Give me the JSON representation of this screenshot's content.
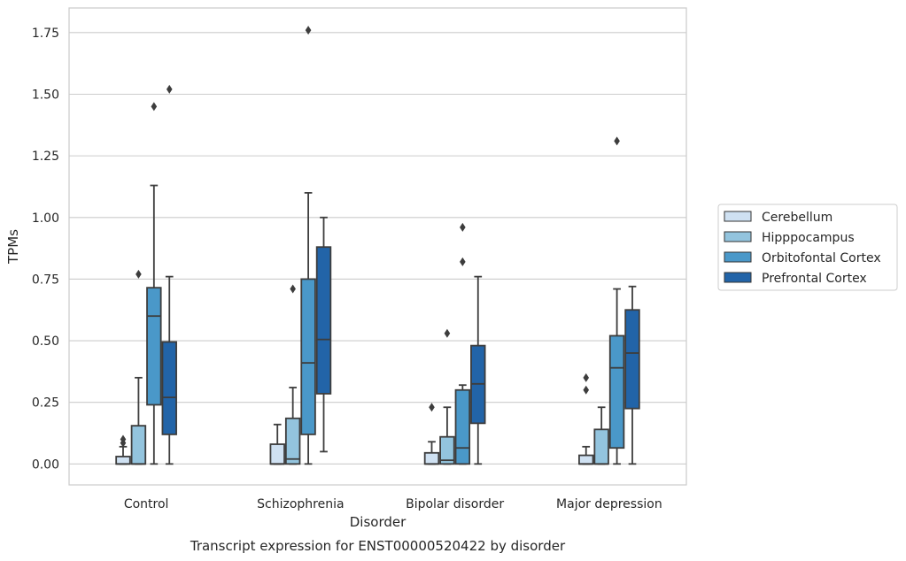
{
  "chart_data": {
    "type": "boxplot",
    "caption": "Transcript expression for ENST00000520422 by disorder",
    "xlabel": "Disorder",
    "ylabel": "TPMs",
    "ylim": [
      -0.085,
      1.85
    ],
    "yticks": [
      "0.00",
      "0.25",
      "0.50",
      "0.75",
      "1.00",
      "1.25",
      "1.50",
      "1.75"
    ],
    "ytick_values": [
      0,
      0.25,
      0.5,
      0.75,
      1.0,
      1.25,
      1.5,
      1.75
    ],
    "grid": "horizontal",
    "legend_position": "right",
    "categories": [
      "Control",
      "Schizophrenia",
      "Bipolar disorder",
      "Major depression"
    ],
    "series": [
      {
        "name": "Cerebellum",
        "color": "#cfe1f2",
        "boxes": [
          {
            "whislo": 0,
            "q1": 0,
            "med": 0,
            "q3": 0.03,
            "whishi": 0.07,
            "fliers": [
              0.085,
              0.1
            ]
          },
          {
            "whislo": 0,
            "q1": 0,
            "med": 0,
            "q3": 0.08,
            "whishi": 0.16,
            "fliers": []
          },
          {
            "whislo": 0,
            "q1": 0,
            "med": 0,
            "q3": 0.045,
            "whishi": 0.09,
            "fliers": [
              0.23
            ]
          },
          {
            "whislo": 0,
            "q1": 0,
            "med": 0,
            "q3": 0.035,
            "whishi": 0.07,
            "fliers": [
              0.3,
              0.35
            ]
          }
        ]
      },
      {
        "name": "Hipppocampus",
        "color": "#93c4de",
        "boxes": [
          {
            "whislo": 0,
            "q1": 0,
            "med": 0,
            "q3": 0.155,
            "whishi": 0.35,
            "fliers": [
              0.77
            ]
          },
          {
            "whislo": 0,
            "q1": 0,
            "med": 0.02,
            "q3": 0.185,
            "whishi": 0.31,
            "fliers": [
              0.71
            ]
          },
          {
            "whislo": 0,
            "q1": 0,
            "med": 0.015,
            "q3": 0.11,
            "whishi": 0.23,
            "fliers": [
              0.53
            ]
          },
          {
            "whislo": 0,
            "q1": 0,
            "med": 0,
            "q3": 0.14,
            "whishi": 0.23,
            "fliers": []
          }
        ]
      },
      {
        "name": "Orbitofontal Cortex",
        "color": "#4a98c9",
        "boxes": [
          {
            "whislo": 0,
            "q1": 0.24,
            "med": 0.6,
            "q3": 0.715,
            "whishi": 1.13,
            "fliers": [
              1.45
            ]
          },
          {
            "whislo": 0,
            "q1": 0.12,
            "med": 0.41,
            "q3": 0.75,
            "whishi": 1.1,
            "fliers": [
              1.76
            ]
          },
          {
            "whislo": 0,
            "q1": 0,
            "med": 0.065,
            "q3": 0.3,
            "whishi": 0.32,
            "fliers": [
              0.82,
              0.96
            ]
          },
          {
            "whislo": 0,
            "q1": 0.065,
            "med": 0.39,
            "q3": 0.52,
            "whishi": 0.71,
            "fliers": [
              1.31
            ]
          }
        ]
      },
      {
        "name": "Prefrontal Cortex",
        "color": "#2264a8",
        "boxes": [
          {
            "whislo": 0,
            "q1": 0.12,
            "med": 0.27,
            "q3": 0.495,
            "whishi": 0.76,
            "fliers": [
              1.52
            ]
          },
          {
            "whislo": 0.05,
            "q1": 0.285,
            "med": 0.505,
            "q3": 0.88,
            "whishi": 1.0,
            "fliers": []
          },
          {
            "whislo": 0,
            "q1": 0.165,
            "med": 0.325,
            "q3": 0.48,
            "whishi": 0.76,
            "fliers": []
          },
          {
            "whislo": 0,
            "q1": 0.225,
            "med": 0.45,
            "q3": 0.625,
            "whishi": 0.72,
            "fliers": []
          }
        ]
      }
    ]
  }
}
